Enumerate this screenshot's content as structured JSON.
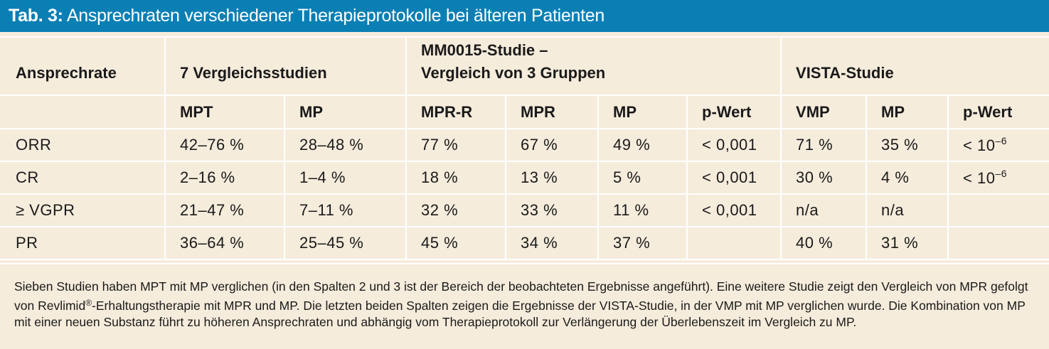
{
  "header": {
    "label": "Tab. 3:",
    "title": "Ansprechraten verschiedener Therapieprotokolle bei älteren Patienten"
  },
  "table": {
    "group_headers": {
      "rate": "Ansprechrate",
      "seven": "7 Vergleichsstudien",
      "mm_line1": "MM0015-Studie –",
      "mm_line2": "Vergleich von 3 Gruppen",
      "vista": "VISTA-Studie"
    },
    "sub_headers": [
      "MPT",
      "MP",
      "MPR-R",
      "MPR",
      "MP",
      "p-Wert",
      "VMP",
      "MP",
      "p-Wert"
    ],
    "rows": [
      {
        "label": "ORR",
        "cells": [
          "42–76 %",
          "28–48 %",
          "77 %",
          "67 %",
          "49 %",
          "< 0,001",
          "71 %",
          "35 %"
        ],
        "last": "< 10",
        "exp": "–6"
      },
      {
        "label": "CR",
        "cells": [
          "2–16 %",
          "1–4 %",
          "18 %",
          "13 %",
          "5 %",
          "< 0,001",
          "30 %",
          "4 %"
        ],
        "last": "< 10",
        "exp": "–6"
      },
      {
        "label": "≥ VGPR",
        "cells": [
          "21–47 %",
          "7–11 %",
          "32 %",
          "33 %",
          "11 %",
          "< 0,001",
          "n/a",
          "n/a"
        ],
        "last": "",
        "exp": ""
      },
      {
        "label": "PR",
        "cells": [
          "36–64 %",
          "25–45 %",
          "45 %",
          "34 %",
          "37 %",
          "",
          "40 %",
          "31 %"
        ],
        "last": "",
        "exp": ""
      }
    ]
  },
  "note": {
    "part1": "Sieben Studien haben MPT mit MP verglichen (in den Spalten 2 und 3 ist der Bereich der beobachteten Ergebnisse angeführt). Eine weitere Studie zeigt den Vergleich von MPR gefolgt von Revlimid",
    "reg": "®",
    "part2": "-Erhaltungstherapie mit MPR und MP. Die letzten beiden Spalten zeigen die Ergebnisse der VISTA-Studie, in der VMP mit MP verglichen wurde. Die Kombination von MP mit einer neuen Substanz führt zu höheren Ansprechraten und abhängig vom Therapieprotokoll zur Verlängerung der Überlebenszeit im Vergleich zu MP."
  },
  "colors": {
    "header_bg": "#0a7fb4",
    "page_bg": "#f6ecdc",
    "grid": "#ffffff"
  }
}
